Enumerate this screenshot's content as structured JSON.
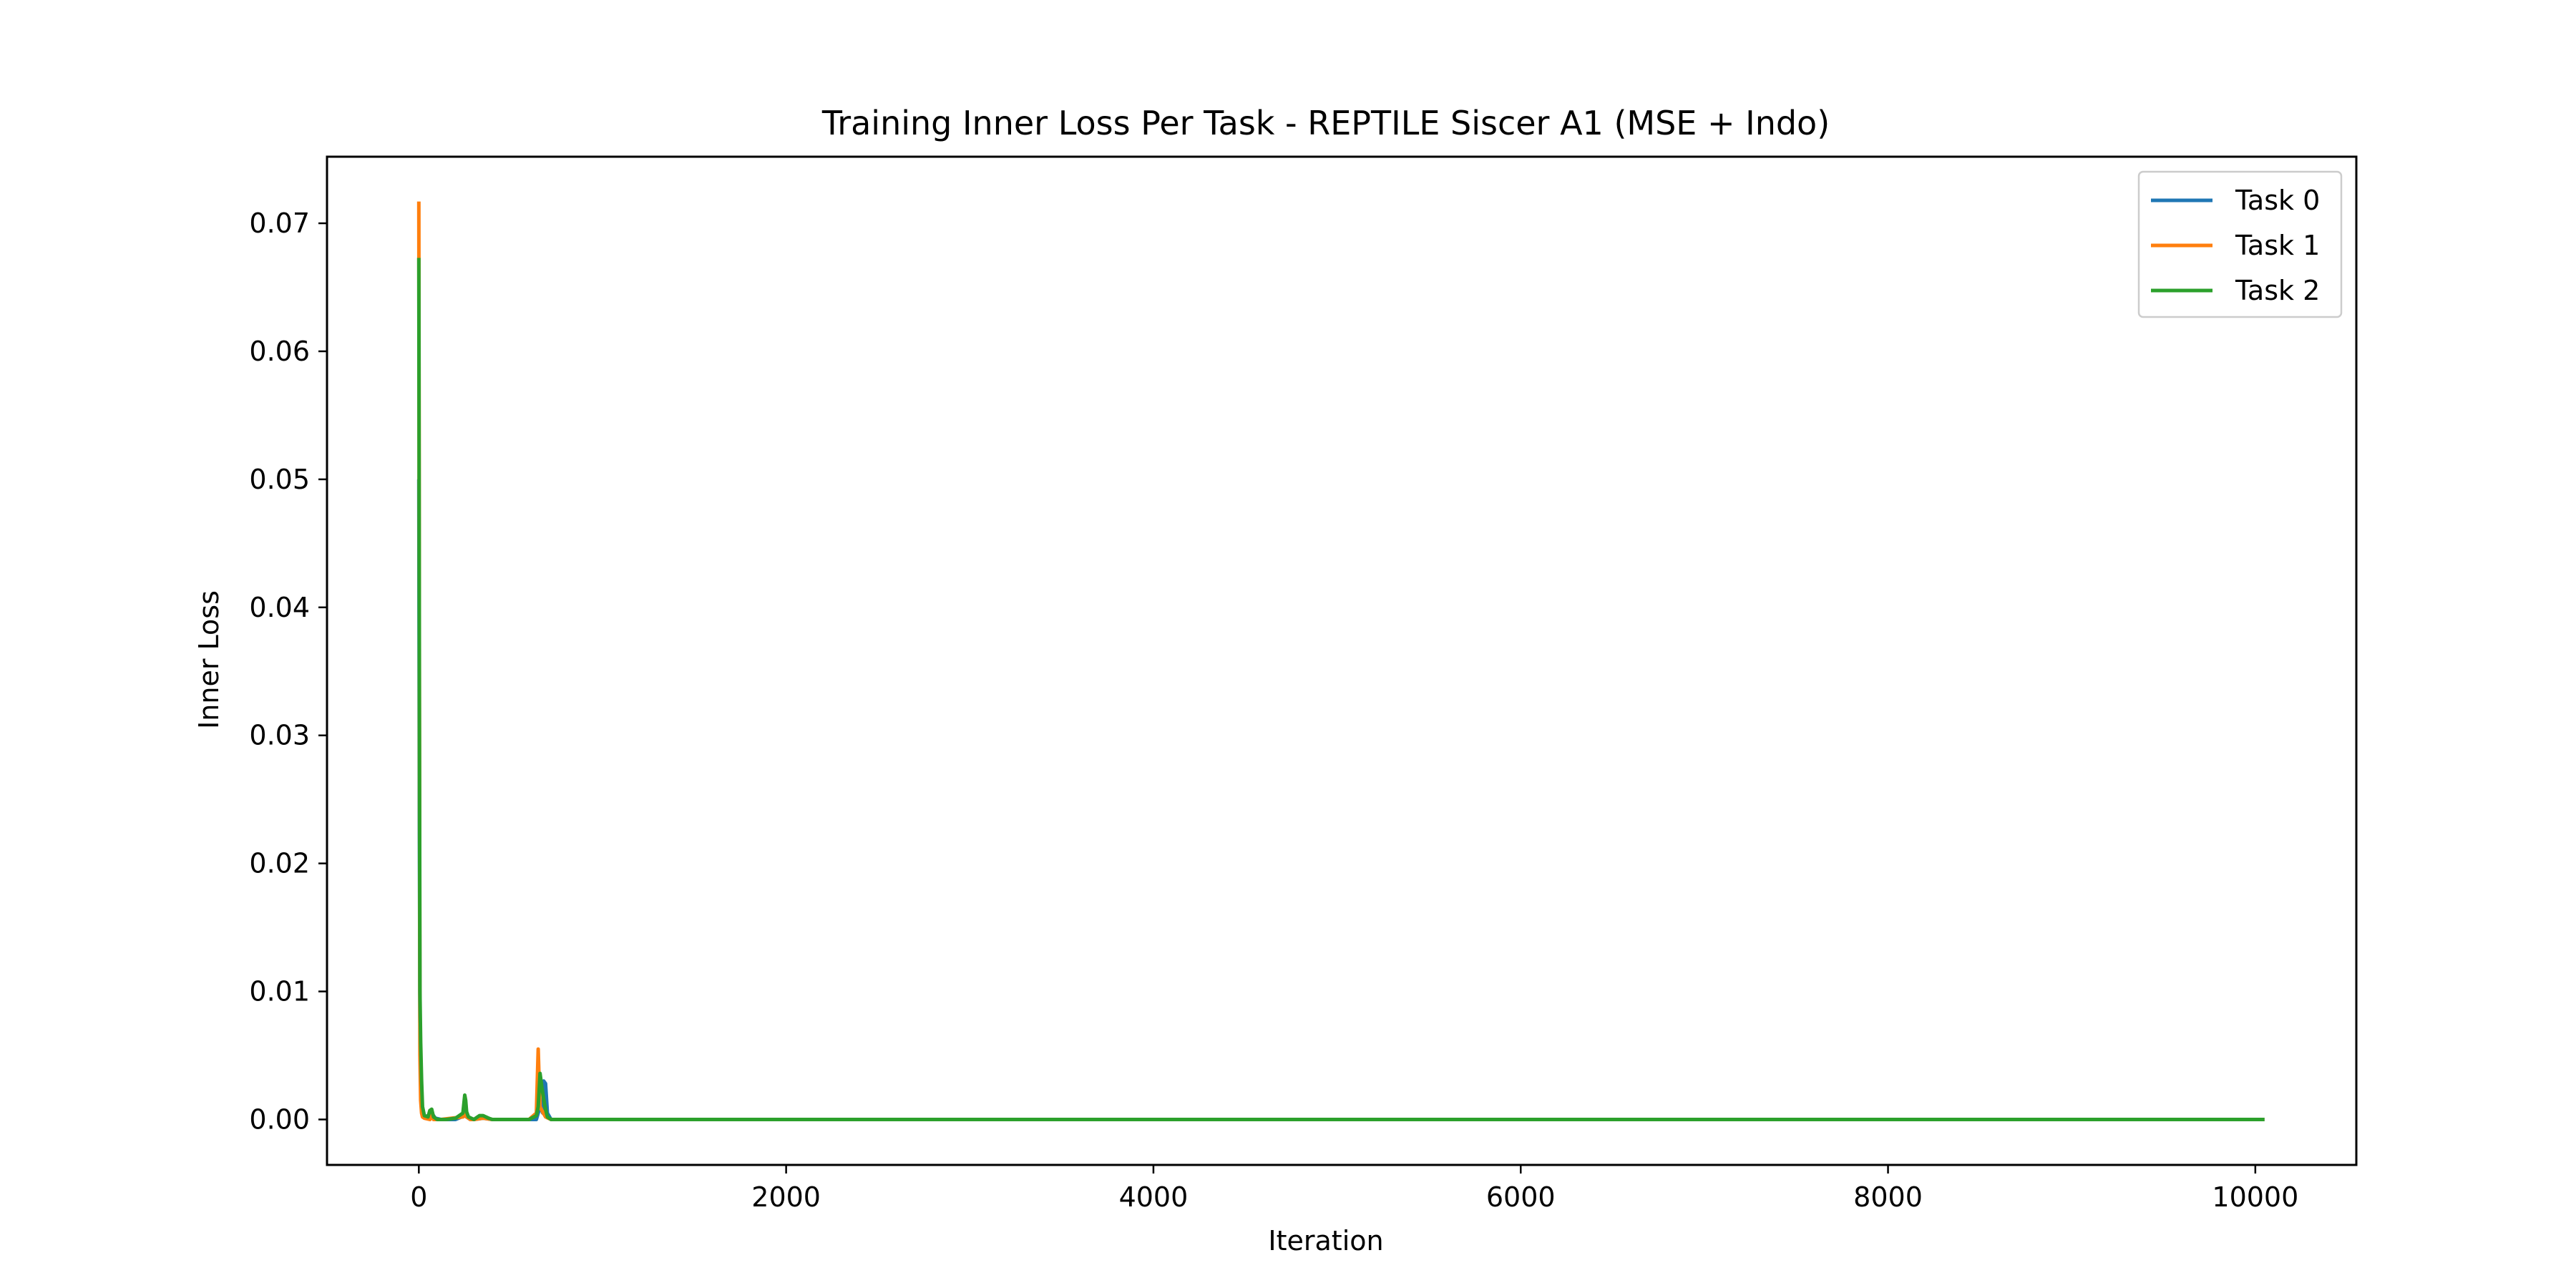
{
  "chart_data": {
    "type": "line",
    "title": "Training Inner Loss Per Task - REPTILE Siscer A1 (MSE + Indo)",
    "xlabel": "Iteration",
    "ylabel": "Inner Loss",
    "xlim": [
      -500,
      10550
    ],
    "ylim": [
      -0.00355,
      0.0752
    ],
    "xticks": [
      0,
      2000,
      4000,
      6000,
      8000,
      10000
    ],
    "xtick_labels": [
      "0",
      "2000",
      "4000",
      "6000",
      "8000",
      "10000"
    ],
    "yticks": [
      0.0,
      0.01,
      0.02,
      0.03,
      0.04,
      0.05,
      0.06,
      0.07
    ],
    "ytick_labels": [
      "0.00",
      "0.01",
      "0.02",
      "0.03",
      "0.04",
      "0.05",
      "0.06",
      "0.07"
    ],
    "grid": false,
    "legend_position": "top-right",
    "series": [
      {
        "name": "Task 0",
        "color": "#1f77b4",
        "x": [
          0,
          3,
          6,
          10,
          15,
          20,
          30,
          50,
          70,
          90,
          120,
          200,
          250,
          260,
          280,
          300,
          350,
          400,
          500,
          600,
          640,
          660,
          675,
          680,
          690,
          700,
          720,
          800,
          1000,
          2000,
          4000,
          6000,
          8000,
          10050
        ],
        "y": [
          0.05,
          0.023,
          0.008,
          0.004,
          0.001,
          0.0005,
          0.0002,
          0.0003,
          0.0005,
          0.0001,
          0.0,
          0.0,
          0.0003,
          0.0002,
          0.0,
          0.0,
          0.0001,
          0.0,
          0.0,
          0.0,
          0.0,
          0.001,
          0.0005,
          0.003,
          0.0028,
          0.0005,
          0.0,
          0.0,
          0.0,
          0.0,
          0.0,
          0.0,
          0.0,
          0.0
        ]
      },
      {
        "name": "Task 1",
        "color": "#ff7f0e",
        "x": [
          0,
          3,
          6,
          10,
          15,
          20,
          30,
          60,
          70,
          80,
          120,
          240,
          250,
          260,
          280,
          300,
          350,
          400,
          500,
          600,
          640,
          650,
          655,
          660,
          670,
          690,
          720,
          800,
          1000,
          2000,
          4000,
          6000,
          8000,
          10050
        ],
        "y": [
          0.0717,
          0.035,
          0.005,
          0.0015,
          0.0005,
          0.0002,
          0.0001,
          0.0,
          0.0004,
          0.0,
          0.0,
          0.0002,
          0.0008,
          0.0002,
          0.0,
          0.0,
          0.0001,
          0.0,
          0.0,
          0.0,
          0.0005,
          0.0055,
          0.003,
          0.001,
          0.0007,
          0.0002,
          0.0,
          0.0,
          0.0,
          0.0,
          0.0,
          0.0,
          0.0,
          0.0
        ]
      },
      {
        "name": "Task 2",
        "color": "#2ca02c",
        "x": [
          0,
          3,
          6,
          10,
          15,
          20,
          30,
          50,
          60,
          70,
          80,
          100,
          150,
          200,
          240,
          250,
          255,
          260,
          270,
          300,
          330,
          350,
          380,
          400,
          500,
          600,
          640,
          650,
          660,
          670,
          680,
          690,
          700,
          720,
          800,
          1000,
          2000,
          4000,
          6000,
          8000,
          10050
        ],
        "y": [
          0.0673,
          0.033,
          0.01,
          0.006,
          0.003,
          0.001,
          0.0003,
          0.0002,
          0.0007,
          0.0008,
          0.0002,
          0.0,
          0.0,
          0.0001,
          0.0005,
          0.0019,
          0.0015,
          0.0006,
          0.0002,
          0.0,
          0.0003,
          0.0003,
          0.0001,
          0.0,
          0.0,
          0.0,
          0.0003,
          0.001,
          0.0036,
          0.0025,
          0.0016,
          0.0008,
          0.0002,
          0.0,
          0.0,
          0.0,
          0.0,
          0.0,
          0.0,
          0.0,
          0.0
        ]
      }
    ]
  }
}
